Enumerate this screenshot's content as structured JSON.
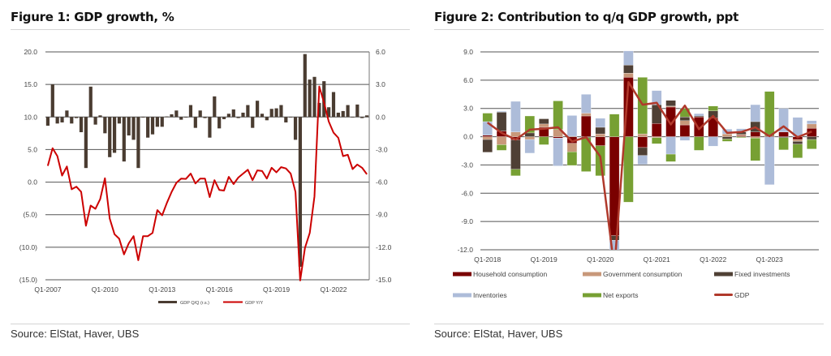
{
  "figure1": {
    "title": "Figure 1: GDP growth, %",
    "source": "Source: ElStat, Haver, UBS",
    "chart_data": {
      "type": "bar+line",
      "x_start": "Q1-2007",
      "x_end": "Q4-2023",
      "x_tick_labels": [
        "Q1-2007",
        "Q1-2010",
        "Q1-2013",
        "Q1-2016",
        "Q1-2019",
        "Q1-2022"
      ],
      "left_axis": {
        "range": [
          -15,
          20
        ],
        "tick_labels": [
          "20.0",
          "15.0",
          "10.0",
          "5.0",
          "0.0",
          "(5.0)",
          "(10.0)",
          "(15.0)"
        ],
        "tick_values": [
          20,
          15,
          10,
          5,
          0,
          -5,
          -10,
          -15
        ]
      },
      "right_axis": {
        "range": [
          -15,
          6
        ],
        "tick_labels": [
          "6.0",
          "3.0",
          "0.0",
          "-3.0",
          "-6.0",
          "-9.0",
          "-12.0",
          "-15.0"
        ],
        "tick_values": [
          6,
          3,
          0,
          -3,
          -6,
          -9,
          -12,
          -15
        ]
      },
      "grid": true,
      "legend_position": "bottom",
      "series": [
        {
          "name": "GDP Q/Q (r.s.)",
          "type": "bar",
          "axis": "right",
          "color": "#4a3c31",
          "values": [
            -0.8,
            3.0,
            -0.6,
            -0.5,
            0.6,
            -0.6,
            -0.1,
            -1.4,
            -4.7,
            2.8,
            -0.7,
            0.15,
            -1.5,
            -3.7,
            -3.3,
            -0.6,
            -4.1,
            -1.7,
            -2.1,
            -4.7,
            -0.05,
            -1.9,
            -1.6,
            -0.9,
            -0.9,
            0.05,
            0.25,
            0.6,
            -0.25,
            -0.05,
            1.1,
            -1.0,
            0.6,
            -0.1,
            -1.9,
            1.9,
            -1.05,
            -0.2,
            0.3,
            0.7,
            -0.1,
            0.4,
            1.1,
            -1.0,
            1.5,
            0.3,
            -0.3,
            0.75,
            0.8,
            1.1,
            -0.5,
            0.0,
            -2.1,
            -13.8,
            5.8,
            3.45,
            3.7,
            1.3,
            3.3,
            0.9,
            2.3,
            0.4,
            0.55,
            1.1,
            0.0,
            1.15,
            -0.1,
            0.15
          ]
        },
        {
          "name": "GDP Y/Y",
          "type": "line",
          "axis": "left",
          "color": "#cc0000",
          "values": [
            2.5,
            5.2,
            4.0,
            1.0,
            2.4,
            -1.1,
            -0.7,
            -1.5,
            -6.7,
            -3.6,
            -4.1,
            -2.6,
            0.6,
            -5.6,
            -8.0,
            -8.7,
            -11.1,
            -9.4,
            -8.3,
            -12.0,
            -8.3,
            -8.3,
            -7.8,
            -4.3,
            -5.1,
            -3.2,
            -1.5,
            -0.1,
            0.55,
            0.5,
            1.3,
            -0.2,
            0.55,
            0.55,
            -2.3,
            0.3,
            -1.2,
            -1.3,
            0.8,
            -0.3,
            0.7,
            1.3,
            1.9,
            0.3,
            1.8,
            1.7,
            0.55,
            2.2,
            1.5,
            2.3,
            2.1,
            1.3,
            -1.5,
            -15.1,
            -10.1,
            -7.8,
            -2.2,
            14.7,
            12.2,
            9.3,
            7.6,
            6.8,
            4.0,
            4.2,
            2.0,
            2.7,
            2.2,
            1.2
          ]
        }
      ]
    }
  },
  "figure2": {
    "title": "Figure 2: Contribution to q/q GDP growth, ppt",
    "source": "Source: ElStat, Haver, UBS",
    "chart_data": {
      "type": "stacked-bar+line",
      "x_start": "Q1-2018",
      "x_end": "Q4-2023",
      "x_tick_labels": [
        "Q1-2018",
        "Q1-2019",
        "Q1-2020",
        "Q1-2021",
        "Q1-2022",
        "Q1-2023"
      ],
      "y_axis": {
        "range": [
          -12,
          9
        ],
        "tick_labels": [
          "9.0",
          "6.0",
          "3.0",
          "0.0",
          "-3.0",
          "-6.0",
          "-9.0",
          "-12.0"
        ],
        "tick_values": [
          9,
          6,
          3,
          0,
          -3,
          -6,
          -9,
          -12
        ]
      },
      "grid": true,
      "legend_position": "bottom",
      "series": [
        {
          "name": "Household consumption",
          "type": "bar",
          "color": "#7a0000",
          "values": [
            0.15,
            0.6,
            -0.35,
            0,
            1.0,
            -0.15,
            -0.7,
            2.2,
            -0.95,
            -10.5,
            6.3,
            -1.15,
            1.4,
            3.15,
            1.25,
            2.1,
            2.0,
            0,
            0.1,
            0.5,
            0.1,
            0.5,
            -0.3,
            0.9
          ]
        },
        {
          "name": "Government consumption",
          "type": "bar",
          "color": "#c8987a",
          "values": [
            -0.3,
            -0.85,
            0.5,
            -0.3,
            0.35,
            0.75,
            -0.9,
            0.3,
            0.3,
            0,
            0.45,
            0.3,
            -0.1,
            0.1,
            0.45,
            0,
            0,
            0.3,
            0.15,
            -0.15,
            0,
            0,
            -0.2,
            0.45
          ]
        },
        {
          "name": "Fixed investments",
          "type": "bar",
          "color": "#4f4035",
          "values": [
            -1.35,
            2.0,
            -3.1,
            0.4,
            0.55,
            0,
            0.05,
            -0.1,
            0.7,
            -0.5,
            0.85,
            -0.85,
            2.0,
            0.6,
            0.4,
            0.1,
            0.75,
            -0.25,
            0.25,
            1.1,
            0,
            -0.1,
            -0.3,
            -0.3
          ]
        },
        {
          "name": "Inventories",
          "type": "bar",
          "color": "#adbcd9",
          "values": [
            1.45,
            0.1,
            3.25,
            -1.45,
            0,
            -2.95,
            2.2,
            2.0,
            0.95,
            -1.2,
            1.5,
            -0.95,
            1.5,
            -1.85,
            -0.4,
            0.25,
            -1.0,
            0.5,
            0.35,
            1.8,
            -5.1,
            2.5,
            2.05,
            0.35
          ]
        },
        {
          "name": "Net exports",
          "type": "bar",
          "color": "#77a033",
          "values": [
            0.9,
            -0.6,
            -0.7,
            1.8,
            -0.85,
            3.05,
            -1.45,
            -3.6,
            -3.2,
            2.4,
            -6.95,
            6.0,
            -0.65,
            -0.8,
            0.9,
            -1.45,
            0.5,
            -0.25,
            -0.1,
            -2.4,
            4.7,
            -1.3,
            -1.45,
            -1.0
          ]
        },
        {
          "name": "GDP",
          "type": "line",
          "color": "#b0392b",
          "values": [
            1.5,
            0.4,
            -0.3,
            0.75,
            0.85,
            1.0,
            -0.5,
            -0.05,
            -2.1,
            -14.0,
            5.8,
            3.4,
            3.6,
            1.3,
            3.3,
            0.8,
            2.2,
            0.4,
            0.5,
            1.0,
            0.05,
            1.1,
            -0.05,
            0.55
          ]
        }
      ]
    }
  }
}
